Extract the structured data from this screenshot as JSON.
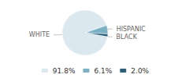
{
  "chart_data": {
    "type": "pie",
    "categories": [
      "WHITE",
      "HISPANIC",
      "BLACK"
    ],
    "values": [
      91.8,
      6.1,
      2.0
    ],
    "value_labels": [
      "91.8%",
      "6.1%",
      "2.0%"
    ],
    "colors": [
      "#dce8f0",
      "#7aafc4",
      "#2d5f7a"
    ],
    "legend": "bottom"
  }
}
